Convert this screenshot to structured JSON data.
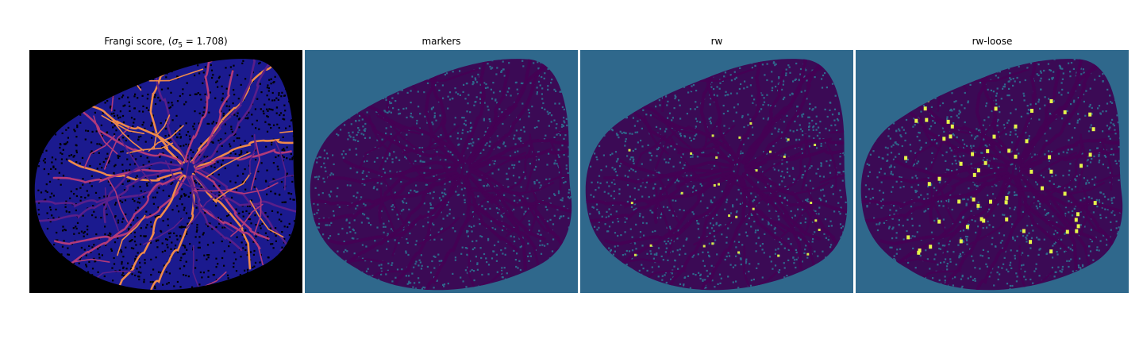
{
  "figure": {
    "panels": [
      {
        "id": "frangi",
        "title_prefix": "Frangi score, (",
        "title_sigma": "σ",
        "title_sub": "5",
        "title_suffix": " = 1.708)",
        "colormap": "magma",
        "background": "#000000",
        "tissue": "#1b1a8f",
        "vessel_colors": [
          "#5a1f8a",
          "#b23a7a",
          "#f08a4a"
        ]
      },
      {
        "id": "markers",
        "title": "markers",
        "colormap": "viridis",
        "background": "#2f688c",
        "tissue": "#3b0a55",
        "vessel": "#440154"
      },
      {
        "id": "rw",
        "title": "rw",
        "colormap": "viridis",
        "background": "#2f688c",
        "tissue": "#3b0a55",
        "vessel": "#440154",
        "highlight": "#d8e84a"
      },
      {
        "id": "rw-loose",
        "title": "rw-loose",
        "colormap": "viridis",
        "background": "#2f688c",
        "tissue": "#3b0a55",
        "vessel": "#440154",
        "highlight": "#e6f54a"
      }
    ]
  }
}
